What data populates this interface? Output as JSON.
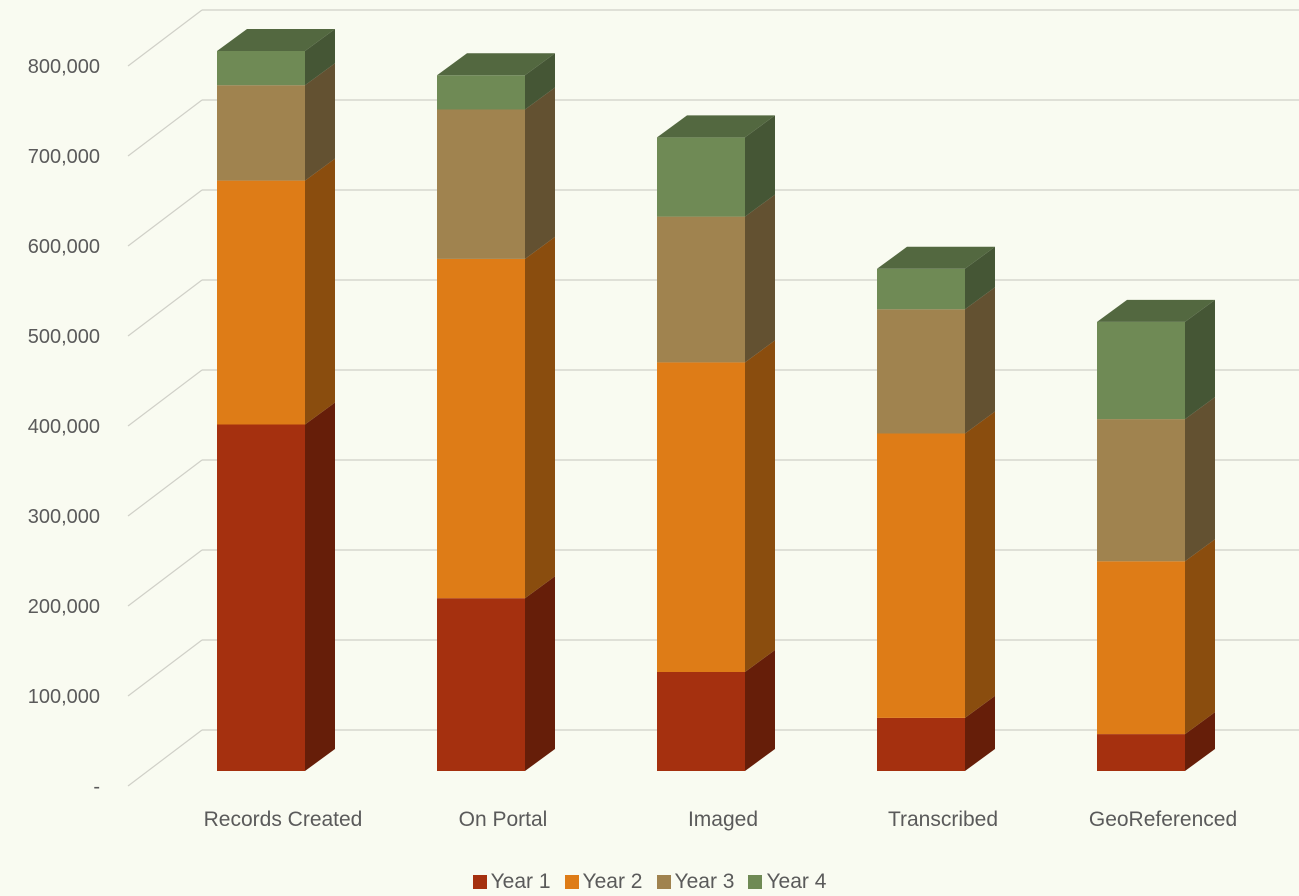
{
  "chart_data": {
    "type": "bar",
    "stacked": true,
    "style": "3d-column",
    "categories": [
      "Records Created",
      "On Portal",
      "Imaged",
      "Transcribed",
      "GeoReferenced"
    ],
    "series": [
      {
        "name": "Year 1",
        "color": "#a5300f",
        "values": [
          385000,
          192000,
          110000,
          59000,
          41000
        ]
      },
      {
        "name": "Year 2",
        "color": "#de7c17",
        "values": [
          271000,
          377000,
          344000,
          316000,
          192000
        ]
      },
      {
        "name": "Year 3",
        "color": "#a0834f",
        "values": [
          106000,
          166000,
          162000,
          138000,
          158000
        ]
      },
      {
        "name": "Year 4",
        "color": "#6f8a55",
        "values": [
          38000,
          38000,
          88000,
          45000,
          108000
        ]
      }
    ],
    "ylim": [
      0,
      800000
    ],
    "y_ticks": [
      "-",
      "100,000",
      "200,000",
      "300,000",
      "400,000",
      "500,000",
      "600,000",
      "700,000",
      "800,000"
    ],
    "grid": true,
    "legend": "bottom"
  }
}
